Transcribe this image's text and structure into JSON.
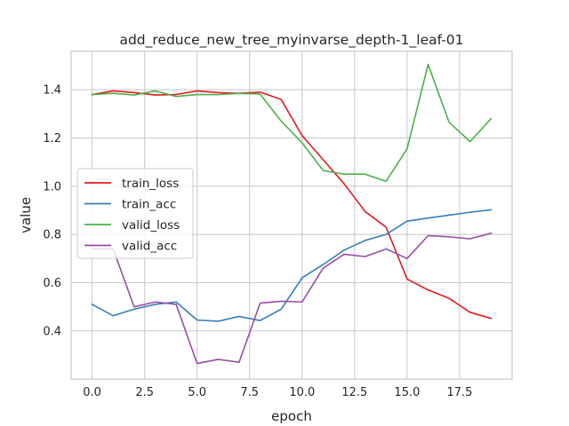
{
  "chart_data": {
    "type": "line",
    "title": "add_reduce_new_tree_myinvarse_depth-1_leaf-01",
    "xlabel": "epoch",
    "ylabel": "value",
    "xlim": [
      -1,
      20
    ],
    "ylim": [
      0.2,
      1.56
    ],
    "xticks": [
      0.0,
      2.5,
      5.0,
      7.5,
      10.0,
      12.5,
      15.0,
      17.5
    ],
    "xtick_labels": [
      "0.0",
      "2.5",
      "5.0",
      "7.5",
      "10.0",
      "12.5",
      "15.0",
      "17.5"
    ],
    "yticks": [
      0.4,
      0.6,
      0.8,
      1.0,
      1.2,
      1.4
    ],
    "ytick_labels": [
      "0.4",
      "0.6",
      "0.8",
      "1.0",
      "1.2",
      "1.4"
    ],
    "grid": true,
    "legend_position": "center-left",
    "x": [
      0,
      1,
      2,
      3,
      4,
      5,
      6,
      7,
      8,
      9,
      10,
      11,
      12,
      13,
      14,
      15,
      16,
      17,
      18,
      19
    ],
    "series": [
      {
        "name": "train_loss",
        "color": "#e41a1c",
        "values": [
          1.38,
          1.395,
          1.388,
          1.378,
          1.38,
          1.395,
          1.388,
          1.385,
          1.39,
          1.36,
          1.21,
          1.11,
          1.01,
          0.895,
          0.83,
          0.615,
          0.57,
          0.535,
          0.477,
          0.452
        ]
      },
      {
        "name": "train_acc",
        "color": "#377eb8",
        "values": [
          0.51,
          0.463,
          0.49,
          0.51,
          0.52,
          0.445,
          0.44,
          0.46,
          0.443,
          0.49,
          0.62,
          0.675,
          0.735,
          0.775,
          0.8,
          0.855,
          0.868,
          0.88,
          0.892,
          0.902
        ]
      },
      {
        "name": "valid_loss",
        "color": "#4daf4a",
        "values": [
          1.38,
          1.385,
          1.378,
          1.395,
          1.372,
          1.38,
          1.38,
          1.385,
          1.382,
          1.27,
          1.18,
          1.065,
          1.05,
          1.05,
          1.02,
          1.155,
          1.505,
          1.265,
          1.185,
          1.28
        ]
      },
      {
        "name": "valid_acc",
        "color": "#984ea3",
        "values": [
          0.74,
          0.74,
          0.5,
          0.52,
          0.51,
          0.265,
          0.282,
          0.27,
          0.515,
          0.523,
          0.52,
          0.66,
          0.718,
          0.708,
          0.74,
          0.7,
          0.795,
          0.79,
          0.782,
          0.805
        ]
      }
    ]
  }
}
